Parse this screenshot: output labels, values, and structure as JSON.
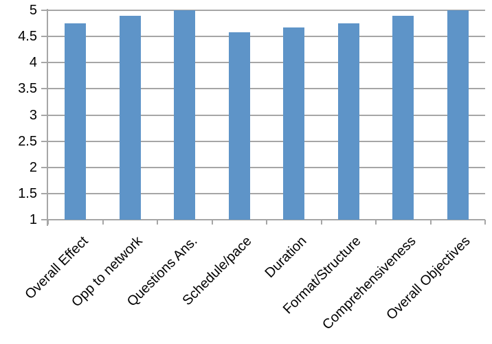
{
  "chart_data": {
    "type": "bar",
    "title": "",
    "xlabel": "",
    "ylabel": "",
    "categories": [
      "Overall Effect",
      "Opp to network",
      "Questions Ans.",
      "Schedule/pace",
      "Duration",
      "Format/Structure",
      "Comprehensiveness",
      "Overall Objectives"
    ],
    "values": [
      4.75,
      4.9,
      5,
      4.58,
      4.67,
      4.75,
      4.9,
      5
    ],
    "ylim": [
      1,
      5
    ],
    "yticks": [
      5,
      4.5,
      4,
      3.5,
      3,
      2.5,
      2,
      1.5,
      1
    ],
    "grid": true,
    "legend": false,
    "colors": {
      "bar": "#5E94C8",
      "gridline": "#A6A6A6",
      "axis": "#A6A6A6",
      "text": "#000000",
      "background": "#FFFFFF"
    }
  }
}
